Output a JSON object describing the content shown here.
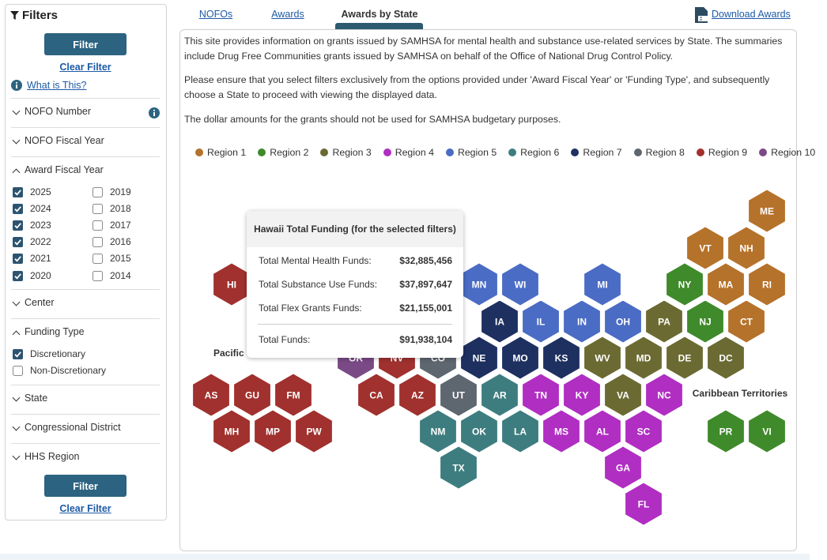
{
  "sidebar": {
    "title": "Filters",
    "filter_button": "Filter",
    "clear_filter": "Clear Filter",
    "help_link": "What is This?",
    "sections": [
      {
        "label": "NOFO Number",
        "expanded": false
      },
      {
        "label": "NOFO Fiscal Year",
        "expanded": false
      },
      {
        "label": "Award Fiscal Year",
        "expanded": true,
        "option_columns": [
          [
            {
              "label": "2025",
              "checked": true
            },
            {
              "label": "2024",
              "checked": true
            },
            {
              "label": "2023",
              "checked": true
            },
            {
              "label": "2022",
              "checked": true
            },
            {
              "label": "2021",
              "checked": true
            },
            {
              "label": "2020",
              "checked": true
            }
          ],
          [
            {
              "label": "2019",
              "checked": false
            },
            {
              "label": "2018",
              "checked": false
            },
            {
              "label": "2017",
              "checked": false
            },
            {
              "label": "2016",
              "checked": false
            },
            {
              "label": "2015",
              "checked": false
            },
            {
              "label": "2014",
              "checked": false
            }
          ]
        ]
      },
      {
        "label": "Center",
        "expanded": false
      },
      {
        "label": "Funding Type",
        "expanded": true,
        "option_columns": [
          [
            {
              "label": "Discretionary",
              "checked": true
            },
            {
              "label": "Non-Discretionary",
              "checked": false
            }
          ]
        ]
      },
      {
        "label": "State",
        "expanded": false
      },
      {
        "label": "Congressional District",
        "expanded": false
      },
      {
        "label": "HHS Region",
        "expanded": false
      }
    ]
  },
  "tabs": [
    {
      "label": "NOFOs",
      "active": false
    },
    {
      "label": "Awards",
      "active": false
    },
    {
      "label": "Awards by State",
      "active": true
    }
  ],
  "download_link": "Download Awards",
  "intro": [
    "This site provides information on grants issued by SAMHSA for mental health and substance use-related services by State. The summaries include Drug Free Communities grants issued by SAMHSA on behalf of the Office of National Drug Control Policy.",
    "Please ensure that you select filters exclusively from the options provided under 'Award Fiscal Year' or 'Funding Type', and subsequently choose a State to proceed with viewing the displayed data.",
    "The dollar amounts for the grants should not be used for SAMHSA budgetary purposes."
  ],
  "legend": [
    {
      "label": "Region 1",
      "color": "#b5722a"
    },
    {
      "label": "Region 2",
      "color": "#3f8a2a"
    },
    {
      "label": "Region 3",
      "color": "#6b6a32"
    },
    {
      "label": "Region 4",
      "color": "#b02ec2"
    },
    {
      "label": "Region 5",
      "color": "#4a6cc4"
    },
    {
      "label": "Region 6",
      "color": "#3e7d7f"
    },
    {
      "label": "Region 7",
      "color": "#1e3060"
    },
    {
      "label": "Region 8",
      "color": "#5e6670"
    },
    {
      "label": "Region 9",
      "color": "#a0312e"
    },
    {
      "label": "Region 10",
      "color": "#7a4a86"
    }
  ],
  "group_labels": [
    "Pacific Territories",
    "Caribbean Territories"
  ],
  "hexes": [
    {
      "label": "ME",
      "color": "#b5722a"
    },
    {
      "label": "VT",
      "color": "#b5722a"
    },
    {
      "label": "NH",
      "color": "#b5722a"
    },
    {
      "label": "HI",
      "color": "#a0312e"
    },
    {
      "label": "MN",
      "color": "#4a6cc4"
    },
    {
      "label": "WI",
      "color": "#4a6cc4"
    },
    {
      "label": "MI",
      "color": "#4a6cc4"
    },
    {
      "label": "NY",
      "color": "#3f8a2a"
    },
    {
      "label": "MA",
      "color": "#b5722a"
    },
    {
      "label": "RI",
      "color": "#b5722a"
    },
    {
      "label": "IA",
      "color": "#1e3060"
    },
    {
      "label": "IL",
      "color": "#4a6cc4"
    },
    {
      "label": "IN",
      "color": "#4a6cc4"
    },
    {
      "label": "OH",
      "color": "#4a6cc4"
    },
    {
      "label": "PA",
      "color": "#6b6a32"
    },
    {
      "label": "NJ",
      "color": "#3f8a2a"
    },
    {
      "label": "CT",
      "color": "#b5722a"
    },
    {
      "label": "OR",
      "color": "#7a4a86"
    },
    {
      "label": "NV",
      "color": "#a0312e"
    },
    {
      "label": "CO",
      "color": "#5e6670"
    },
    {
      "label": "NE",
      "color": "#1e3060"
    },
    {
      "label": "MO",
      "color": "#1e3060"
    },
    {
      "label": "KS",
      "color": "#1e3060"
    },
    {
      "label": "WV",
      "color": "#6b6a32"
    },
    {
      "label": "MD",
      "color": "#6b6a32"
    },
    {
      "label": "DE",
      "color": "#6b6a32"
    },
    {
      "label": "DC",
      "color": "#6b6a32"
    },
    {
      "label": "AS",
      "color": "#a0312e"
    },
    {
      "label": "GU",
      "color": "#a0312e"
    },
    {
      "label": "FM",
      "color": "#a0312e"
    },
    {
      "label": "CA",
      "color": "#a0312e"
    },
    {
      "label": "AZ",
      "color": "#a0312e"
    },
    {
      "label": "UT",
      "color": "#5e6670"
    },
    {
      "label": "AR",
      "color": "#3e7d7f"
    },
    {
      "label": "TN",
      "color": "#b02ec2"
    },
    {
      "label": "KY",
      "color": "#b02ec2"
    },
    {
      "label": "VA",
      "color": "#6b6a32"
    },
    {
      "label": "NC",
      "color": "#b02ec2"
    },
    {
      "label": "MH",
      "color": "#a0312e"
    },
    {
      "label": "MP",
      "color": "#a0312e"
    },
    {
      "label": "PW",
      "color": "#a0312e"
    },
    {
      "label": "NM",
      "color": "#3e7d7f"
    },
    {
      "label": "OK",
      "color": "#3e7d7f"
    },
    {
      "label": "LA",
      "color": "#3e7d7f"
    },
    {
      "label": "MS",
      "color": "#b02ec2"
    },
    {
      "label": "AL",
      "color": "#b02ec2"
    },
    {
      "label": "SC",
      "color": "#b02ec2"
    },
    {
      "label": "PR",
      "color": "#3f8a2a"
    },
    {
      "label": "VI",
      "color": "#3f8a2a"
    },
    {
      "label": "TX",
      "color": "#3e7d7f"
    },
    {
      "label": "GA",
      "color": "#b02ec2"
    },
    {
      "label": "FL",
      "color": "#b02ec2"
    }
  ],
  "tooltip": {
    "title": "Hawaii Total Funding (for the selected filters)",
    "rows": [
      {
        "label": "Total Mental Health Funds:",
        "value": "$32,885,456"
      },
      {
        "label": "Total Substance Use Funds:",
        "value": "$37,897,647"
      },
      {
        "label": "Total Flex Grants Funds:",
        "value": "$21,155,001"
      }
    ],
    "total": {
      "label": "Total Funds:",
      "value": "$91,938,104"
    }
  }
}
